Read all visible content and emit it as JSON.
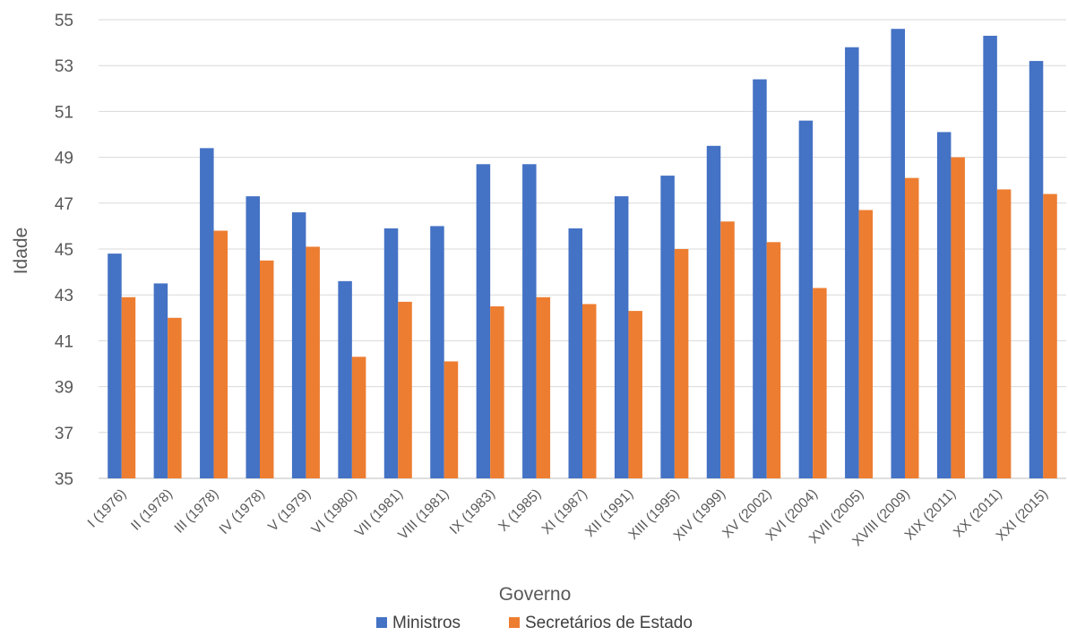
{
  "chart_data": {
    "type": "bar",
    "title": "",
    "xlabel": "Governo",
    "ylabel": "Idade",
    "ylim": [
      35,
      55
    ],
    "yticks": [
      35,
      37,
      39,
      41,
      43,
      45,
      47,
      49,
      51,
      53,
      55
    ],
    "grid": true,
    "legend_position": "bottom",
    "categories": [
      "I (1976)",
      "II (1978)",
      "III (1978)",
      "IV (1978)",
      "V (1979)",
      "VI (1980)",
      "VII (1981)",
      "VIII (1981)",
      "IX (1983)",
      "X (1985)",
      "XI (1987)",
      "XII (1991)",
      "XIII (1995)",
      "XIV (1999)",
      "XV (2002)",
      "XVI (2004)",
      "XVII (2005)",
      "XVIII (2009)",
      "XIX (2011)",
      "XX (2011)",
      "XXI (2015)"
    ],
    "series": [
      {
        "name": "Ministros",
        "color": "#4472C4",
        "values": [
          44.8,
          43.5,
          49.4,
          47.3,
          46.6,
          43.6,
          45.9,
          46.0,
          48.7,
          48.7,
          45.9,
          47.3,
          48.2,
          49.5,
          52.4,
          50.6,
          53.8,
          54.6,
          50.1,
          54.3,
          53.2
        ]
      },
      {
        "name": "Secretários de Estado",
        "color": "#ED7D31",
        "values": [
          42.9,
          42.0,
          45.8,
          44.5,
          45.1,
          40.3,
          42.7,
          40.1,
          42.5,
          42.9,
          42.6,
          42.3,
          45.0,
          46.2,
          45.3,
          43.3,
          46.7,
          48.1,
          49.0,
          47.6,
          47.4
        ]
      }
    ]
  }
}
